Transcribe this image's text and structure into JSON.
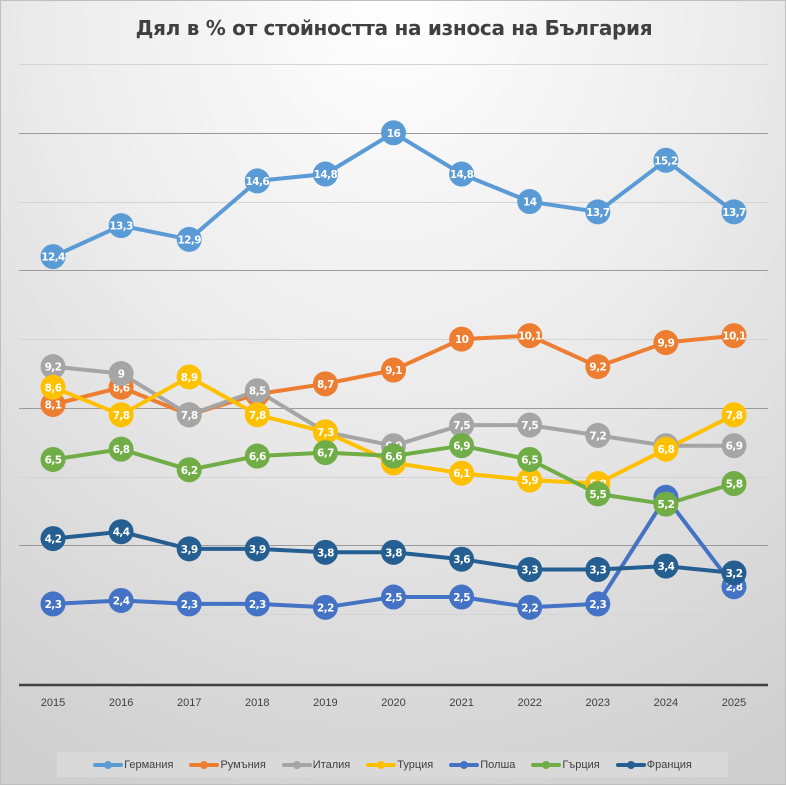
{
  "chart_data": {
    "type": "line",
    "title": "Дял в % от стойността на износа на България",
    "xlabel": "",
    "ylabel": "",
    "x": [
      "2015",
      "2016",
      "2017",
      "2018",
      "2019",
      "2020",
      "2021",
      "2022",
      "2023",
      "2024",
      "2025"
    ],
    "ylim": [
      0,
      18
    ],
    "ytick_step": 2,
    "ytick_labels_visible": false,
    "grid": true,
    "legend_position": "bottom",
    "decimal_separator": ",",
    "series": [
      {
        "name": "Германия",
        "color": "#5b9bd5",
        "values": [
          12.4,
          13.3,
          12.9,
          14.6,
          14.8,
          16,
          14.8,
          14,
          13.7,
          15.2,
          13.7
        ]
      },
      {
        "name": "Румъния",
        "color": "#ed7d31",
        "values": [
          8.1,
          8.6,
          7.8,
          8.4,
          8.7,
          9.1,
          10,
          10.1,
          9.2,
          9.9,
          10.1
        ]
      },
      {
        "name": "Италия",
        "color": "#a5a5a5",
        "values": [
          9.2,
          9,
          7.8,
          8.5,
          7.3,
          6.9,
          7.5,
          7.5,
          7.2,
          6.9,
          6.9
        ]
      },
      {
        "name": "Турция",
        "color": "#ffc000",
        "values": [
          8.6,
          7.8,
          8.9,
          7.8,
          7.3,
          6.4,
          6.1,
          5.9,
          5.8,
          6.8,
          7.8
        ]
      },
      {
        "name": "Полша",
        "color": "#4472c4",
        "values": [
          2.3,
          2.4,
          2.3,
          2.3,
          2.2,
          2.5,
          2.5,
          2.2,
          2.3,
          5.4,
          2.8
        ]
      },
      {
        "name": "Гърция",
        "color": "#70ad47",
        "values": [
          6.5,
          6.8,
          6.2,
          6.6,
          6.7,
          6.6,
          6.9,
          6.5,
          5.5,
          5.2,
          5.8
        ]
      },
      {
        "name": "Франция",
        "color": "#255e91",
        "values": [
          4.2,
          4.4,
          3.9,
          3.9,
          3.8,
          3.8,
          3.6,
          3.3,
          3.3,
          3.4,
          3.2
        ]
      }
    ]
  }
}
